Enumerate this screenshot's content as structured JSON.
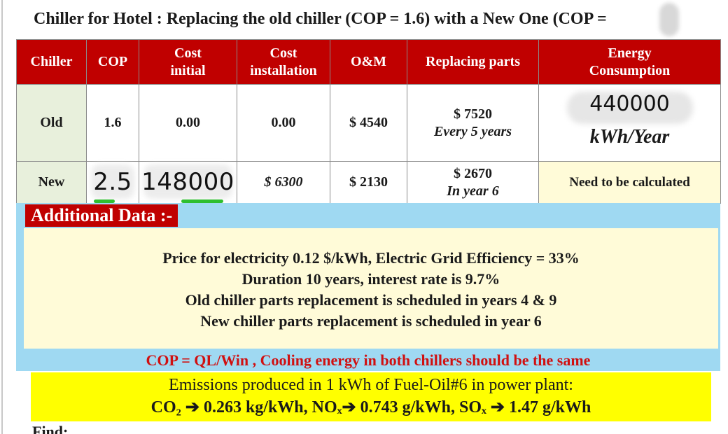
{
  "title": "Chiller for Hotel : Replacing the old chiller (COP = 1.6) with a New One (COP =",
  "table": {
    "headers": {
      "chiller": "Chiller",
      "cop": "COP",
      "cost_initial_1": "Cost",
      "cost_initial_2": "initial",
      "cost_installation_1": "Cost",
      "cost_installation_2": "installation",
      "om": "O&M",
      "replacing_parts": "Replacing parts",
      "energy_1": "Energy",
      "energy_2": "Consumption"
    },
    "old": {
      "name": "Old",
      "cop": "1.6",
      "cost_initial": "0.00",
      "cost_installation": "0.00",
      "om": "$ 4540",
      "parts_1": "$ 7520",
      "parts_2": "Every 5 years",
      "energy_value": "440000",
      "energy_unit": "kWh/Year"
    },
    "new": {
      "name": "New",
      "cop": "2.5",
      "cost_initial": "148000",
      "cost_installation": "$ 6300",
      "om": "$ 2130",
      "parts_1": "$ 2670",
      "parts_2": "In year 6",
      "energy": "Need to be calculated"
    }
  },
  "additional": {
    "heading": "Additional Data :-",
    "lines": [
      "Price for electricity 0.12 $/kWh, Electric Grid Efficiency = 33%",
      "Duration 10 years, interest rate is 9.7%",
      "Old chiller parts replacement is scheduled in years 4 & 9",
      "New chiller parts replacement is scheduled in year 6"
    ]
  },
  "cop_note": "COP = QL/Win , Cooling energy in both chillers should be the same",
  "emissions": {
    "line1": "Emissions produced in 1 kWh of Fuel-Oil#6 in power plant:",
    "line2": "CO₂ ➔ 0.263 kg/kWh, NOₓ➔ 0.743 g/kWh, SOₓ ➔ 1.47 g/kWh"
  },
  "find": "Find:"
}
